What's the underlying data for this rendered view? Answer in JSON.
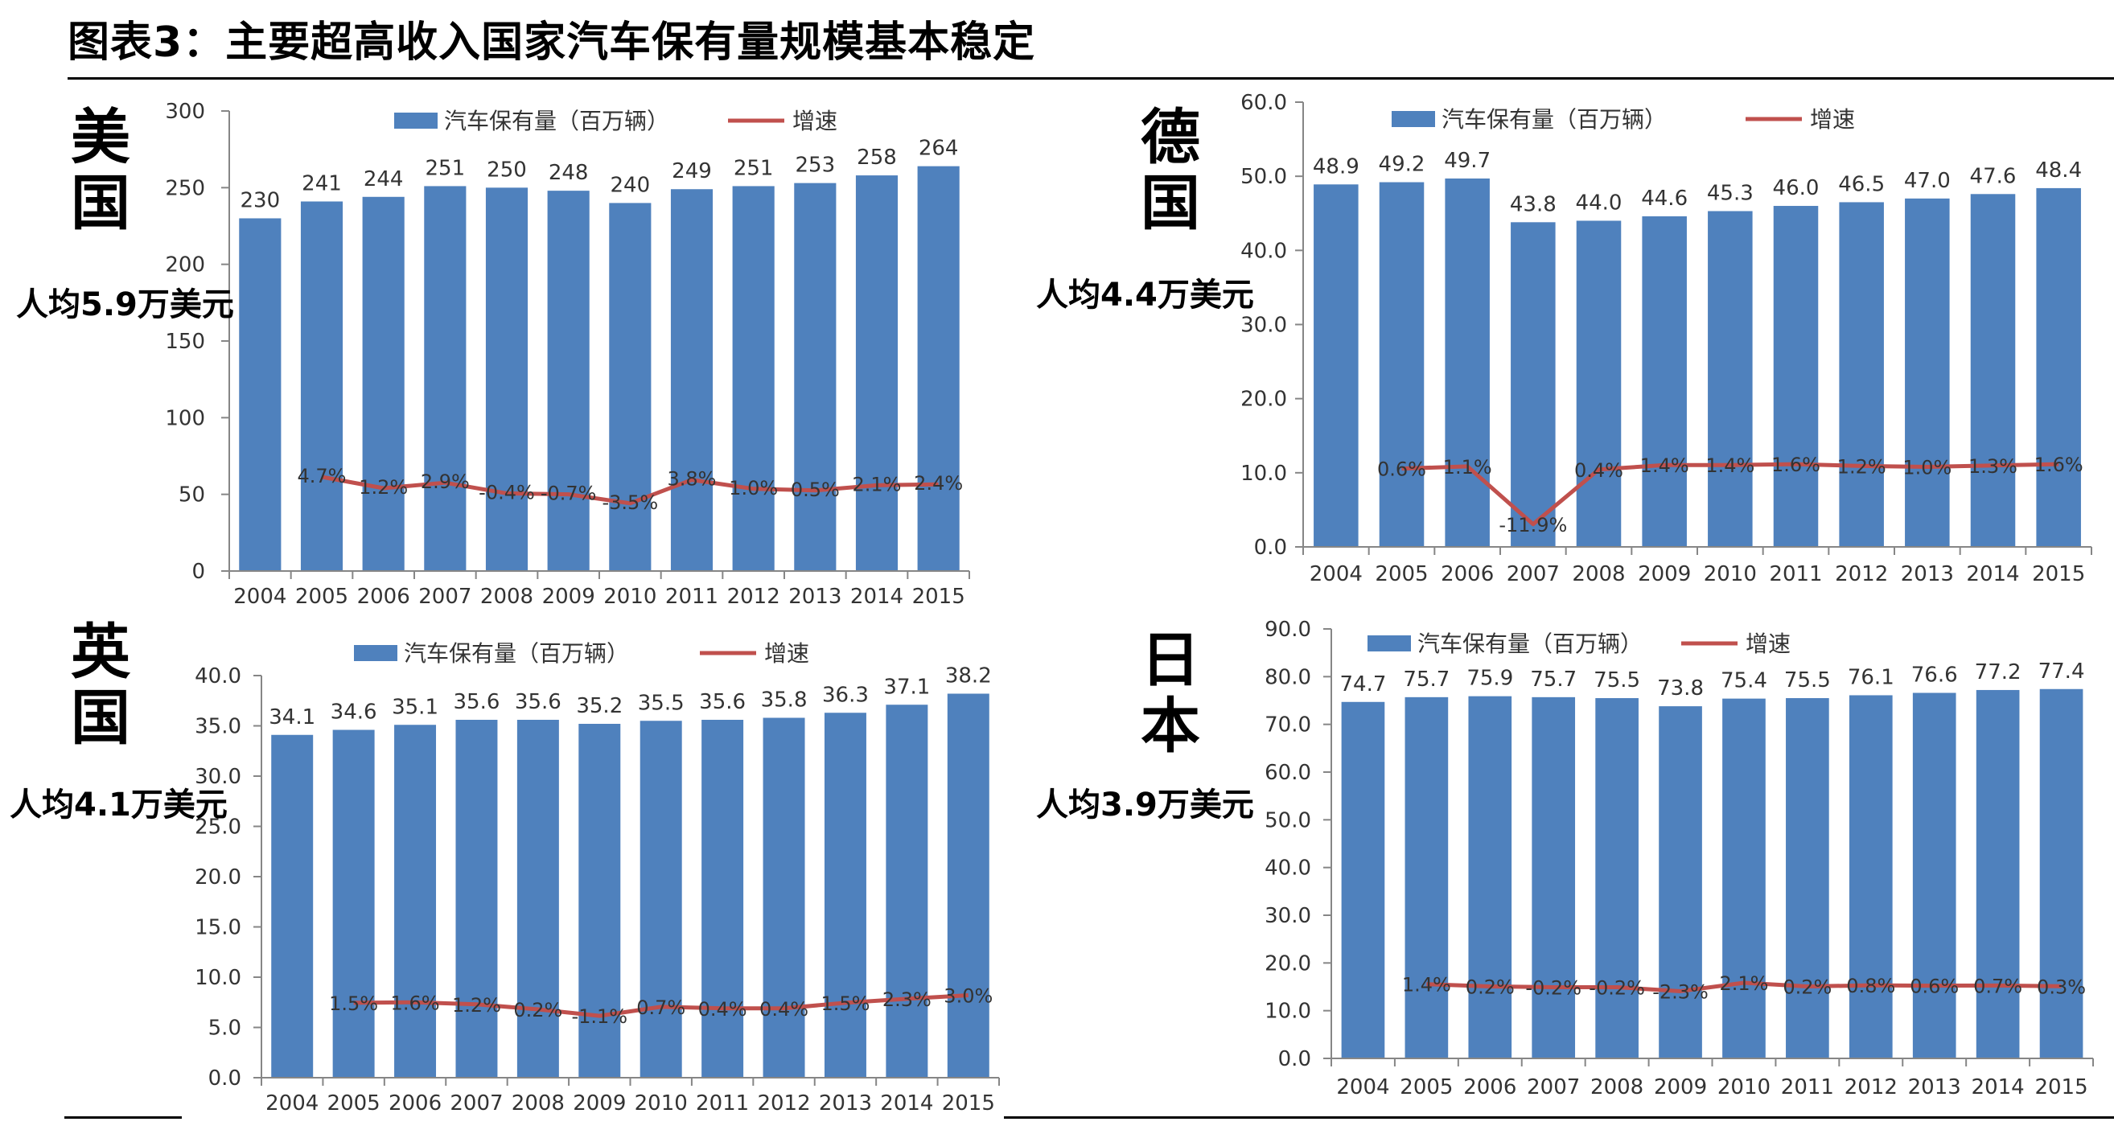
{
  "title": "图表3：主要超高收入国家汽车保有量规模基本稳定",
  "legend": {
    "bars": "汽车保有量（百万辆）",
    "line": "增速"
  },
  "colors": {
    "bar": "#4F81BD",
    "line": "#C0504D",
    "axis": "#868686"
  },
  "panels": [
    {
      "country_chars": [
        "美",
        "国"
      ],
      "gdp": "人均5.9万美元"
    },
    {
      "country_chars": [
        "德",
        "国"
      ],
      "gdp": "人均4.4万美元"
    },
    {
      "country_chars": [
        "英",
        "国"
      ],
      "gdp": "人均4.1万美元"
    },
    {
      "country_chars": [
        "日",
        "本"
      ],
      "gdp": "人均3.9万美元"
    }
  ],
  "chart_data": [
    {
      "type": "bar",
      "categories": [
        "2004",
        "2005",
        "2006",
        "2007",
        "2008",
        "2009",
        "2010",
        "2011",
        "2012",
        "2013",
        "2014",
        "2015"
      ],
      "series": [
        {
          "name": "汽车保有量（百万辆）",
          "values": [
            230,
            241,
            244,
            251,
            250,
            248,
            240,
            249,
            251,
            253,
            258,
            264
          ],
          "labels": [
            "230",
            "241",
            "244",
            "251",
            "250",
            "248",
            "240",
            "249",
            "251",
            "253",
            "258",
            "264"
          ]
        },
        {
          "name": "增速",
          "kind": "line",
          "values": [
            null,
            4.7,
            1.2,
            2.9,
            -0.4,
            -0.7,
            -3.5,
            3.8,
            1.0,
            0.5,
            2.1,
            2.4
          ],
          "labels": [
            "",
            "4.7%",
            "1.2%",
            "2.9%",
            "-0.4%",
            "-0.7%",
            "-3.5%",
            "3.8%",
            "1.0%",
            "0.5%",
            "2.1%",
            "2.4%"
          ]
        }
      ],
      "ylim": [
        0,
        300
      ],
      "yticks": [
        "0",
        "50",
        "100",
        "150",
        "200",
        "250",
        "300"
      ],
      "growth_scale": "plotted on primary axis as 50 + growth×2 (approx.)",
      "legend_position": "top"
    },
    {
      "type": "bar",
      "categories": [
        "2004",
        "2005",
        "2006",
        "2007",
        "2008",
        "2009",
        "2010",
        "2011",
        "2012",
        "2013",
        "2014",
        "2015"
      ],
      "series": [
        {
          "name": "汽车保有量（百万辆）",
          "values": [
            48.9,
            49.2,
            49.7,
            43.8,
            44.0,
            44.6,
            45.3,
            46.0,
            46.5,
            47.0,
            47.6,
            48.4
          ],
          "labels": [
            "48.9",
            "49.2",
            "49.7",
            "43.8",
            "44.0",
            "44.6",
            "45.3",
            "46.0",
            "46.5",
            "47.0",
            "47.6",
            "48.4"
          ]
        },
        {
          "name": "增速",
          "kind": "line",
          "values": [
            null,
            0.6,
            1.1,
            -11.9,
            0.4,
            1.4,
            1.4,
            1.6,
            1.2,
            1.0,
            1.3,
            1.6
          ],
          "labels": [
            "",
            "0.6%",
            "1.1%",
            "-11.9%",
            "0.4%",
            "1.4%",
            "1.4%",
            "1.6%",
            "1.2%",
            "1.0%",
            "1.3%",
            "1.6%"
          ]
        }
      ],
      "ylim": [
        0,
        60
      ],
      "yticks": [
        "0.0",
        "10.0",
        "20.0",
        "30.0",
        "40.0",
        "50.0",
        "60.0"
      ],
      "legend_position": "top"
    },
    {
      "type": "bar",
      "categories": [
        "2004",
        "2005",
        "2006",
        "2007",
        "2008",
        "2009",
        "2010",
        "2011",
        "2012",
        "2013",
        "2014",
        "2015"
      ],
      "series": [
        {
          "name": "汽车保有量（百万辆）",
          "values": [
            34.1,
            34.6,
            35.1,
            35.6,
            35.6,
            35.2,
            35.5,
            35.6,
            35.8,
            36.3,
            37.1,
            38.2
          ],
          "labels": [
            "34.1",
            "34.6",
            "35.1",
            "35.6",
            "35.6",
            "35.2",
            "35.5",
            "35.6",
            "35.8",
            "36.3",
            "37.1",
            "38.2"
          ]
        },
        {
          "name": "增速",
          "kind": "line",
          "values": [
            null,
            1.5,
            1.6,
            1.2,
            0.2,
            -1.1,
            0.7,
            0.4,
            0.4,
            1.5,
            2.3,
            3.0
          ],
          "labels": [
            "",
            "1.5%",
            "1.6%",
            "1.2%",
            "0.2%",
            "-1.1%",
            "0.7%",
            "0.4%",
            "0.4%",
            "1.5%",
            "2.3%",
            "3.0%"
          ]
        }
      ],
      "ylim": [
        0,
        40
      ],
      "yticks": [
        "0.0",
        "5.0",
        "10.0",
        "15.0",
        "20.0",
        "25.0",
        "30.0",
        "35.0",
        "40.0"
      ],
      "legend_position": "top"
    },
    {
      "type": "bar",
      "categories": [
        "2004",
        "2005",
        "2006",
        "2007",
        "2008",
        "2009",
        "2010",
        "2011",
        "2012",
        "2013",
        "2014",
        "2015"
      ],
      "series": [
        {
          "name": "汽车保有量（百万辆）",
          "values": [
            74.7,
            75.7,
            75.9,
            75.7,
            75.5,
            73.8,
            75.4,
            75.5,
            76.1,
            76.6,
            77.2,
            77.4
          ],
          "labels": [
            "74.7",
            "75.7",
            "75.9",
            "75.7",
            "75.5",
            "73.8",
            "75.4",
            "75.5",
            "76.1",
            "76.6",
            "77.2",
            "77.4"
          ]
        },
        {
          "name": "增速",
          "kind": "line",
          "values": [
            null,
            1.4,
            0.2,
            -0.2,
            -0.2,
            -2.3,
            2.1,
            0.2,
            0.8,
            0.6,
            0.7,
            0.3
          ],
          "labels": [
            "",
            "1.4%",
            "0.2%",
            "-0.2%",
            "-0.2%",
            "-2.3%",
            "2.1%",
            "0.2%",
            "0.8%",
            "0.6%",
            "0.7%",
            "0.3%"
          ]
        }
      ],
      "ylim": [
        0,
        90
      ],
      "yticks": [
        "0.0",
        "10.0",
        "20.0",
        "30.0",
        "40.0",
        "50.0",
        "60.0",
        "70.0",
        "80.0",
        "90.0"
      ],
      "legend_position": "top"
    }
  ]
}
